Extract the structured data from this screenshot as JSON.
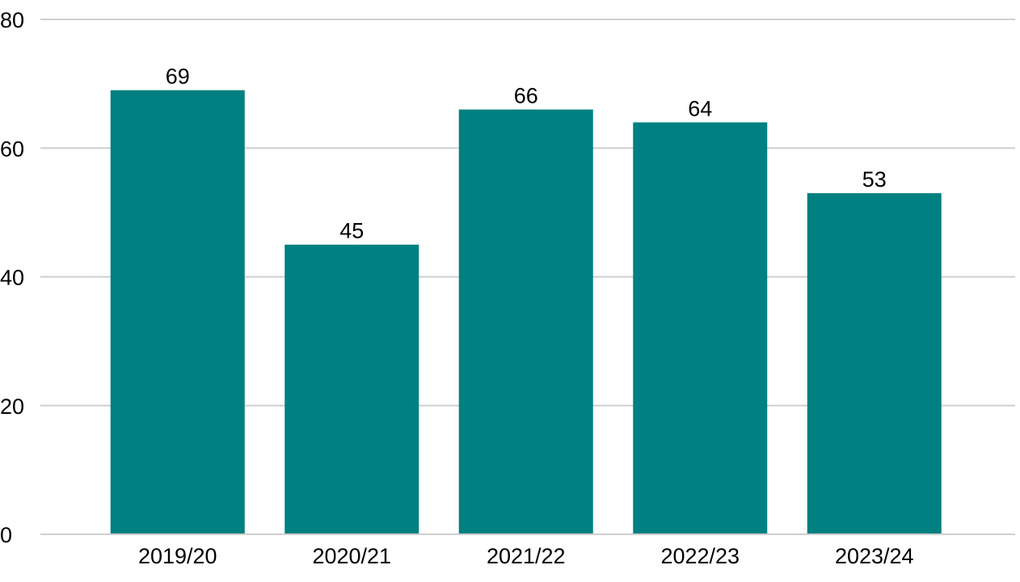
{
  "chart_data": {
    "type": "bar",
    "categories": [
      "2019/20",
      "2020/21",
      "2021/22",
      "2022/23",
      "2023/24"
    ],
    "values": [
      69,
      45,
      66,
      64,
      53
    ],
    "data_labels": [
      "69",
      "45",
      "66",
      "64",
      "53"
    ],
    "title": "",
    "xlabel": "",
    "ylabel": "",
    "ylim": [
      0,
      80
    ],
    "yticks": [
      0,
      20,
      40,
      60,
      80
    ],
    "ytick_labels": [
      "0",
      "20",
      "40",
      "60",
      "80"
    ],
    "grid": true,
    "bar_color": "#008080",
    "grid_color": "#cfcfcf"
  }
}
